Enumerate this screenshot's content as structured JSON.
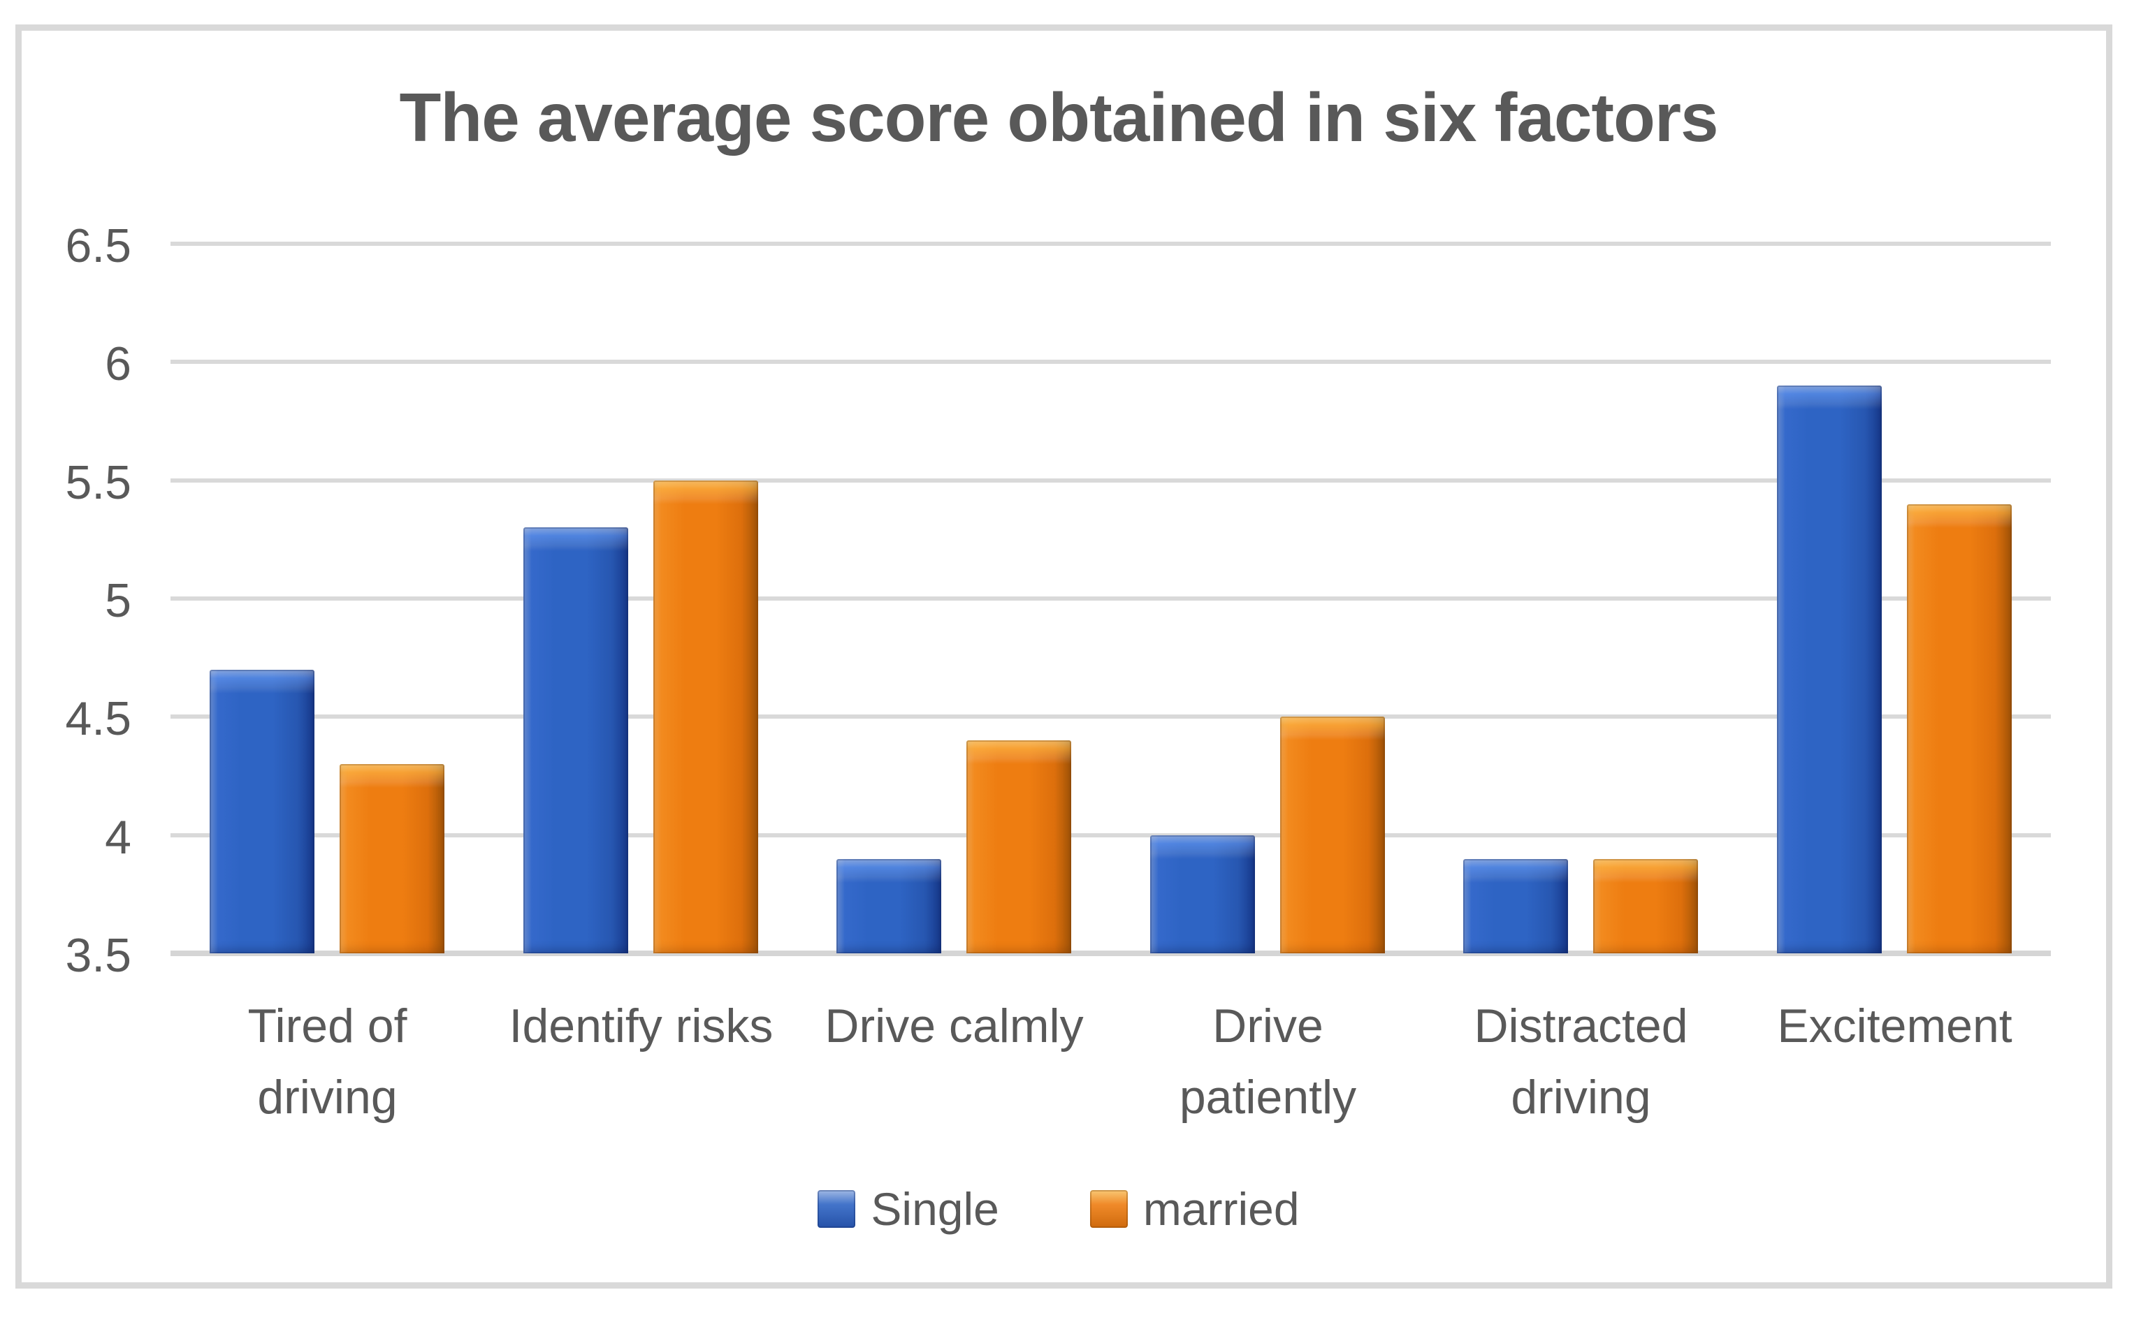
{
  "chart_data": {
    "type": "bar",
    "title": "The average score obtained in six factors",
    "categories": [
      "Tired of driving",
      "Identify risks",
      "Drive calmly",
      "Drive patiently",
      "Distracted driving",
      "Excitement"
    ],
    "category_label_lines": [
      [
        "Tired of",
        "driving"
      ],
      [
        "Identify risks"
      ],
      [
        "Drive calmly"
      ],
      [
        "Drive",
        "patiently"
      ],
      [
        "Distracted",
        "driving"
      ],
      [
        "Excitement"
      ]
    ],
    "series": [
      {
        "name": "Single",
        "color": "#2E64C4",
        "values": [
          4.7,
          5.3,
          3.9,
          4.0,
          3.9,
          5.9
        ]
      },
      {
        "name": "married",
        "color": "#EE7D11",
        "values": [
          4.3,
          5.5,
          4.4,
          4.5,
          3.9,
          5.4
        ]
      }
    ],
    "y_axis": {
      "min": 3.5,
      "max": 6.5,
      "step": 0.5,
      "tick_labels": [
        "6.5",
        "6",
        "5.5",
        "5",
        "4.5",
        "4",
        "3.5"
      ]
    },
    "ylim": [
      3.5,
      6.5
    ],
    "grid": true,
    "legend_position": "bottom",
    "colors": {
      "title_text": "#595959",
      "axis_text": "#595959",
      "gridline": "#D9D9D9",
      "frame_border": "#D9D9D9",
      "background": "#FFFFFF",
      "single_bar": "#2E64C4",
      "married_bar": "#EE7D11"
    }
  }
}
